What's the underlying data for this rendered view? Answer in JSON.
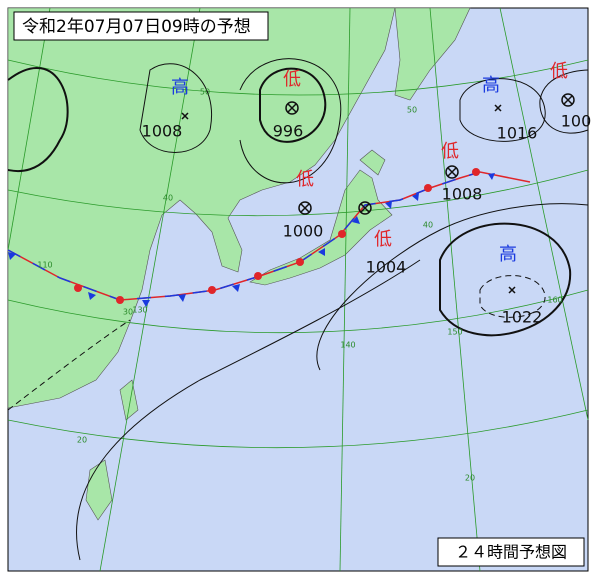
{
  "header": {
    "title": "令和2年07月07日09時の予想"
  },
  "footer": {
    "label": "２４時間予想図"
  },
  "systems": [
    {
      "kind": "高",
      "pressure": 1008
    },
    {
      "kind": "低",
      "pressure": 996
    },
    {
      "kind": "低",
      "pressure": 1000
    },
    {
      "kind": "低",
      "pressure": 1004
    },
    {
      "kind": "低",
      "pressure": 1008
    },
    {
      "kind": "高",
      "pressure": 1016
    },
    {
      "kind": "低",
      "pressure": 100
    },
    {
      "kind": "高",
      "pressure": 1022
    }
  ],
  "graticule": [
    "50",
    "40",
    "30",
    "20",
    "110",
    "130",
    "140",
    "150",
    "160",
    "40",
    "20",
    "50"
  ]
}
